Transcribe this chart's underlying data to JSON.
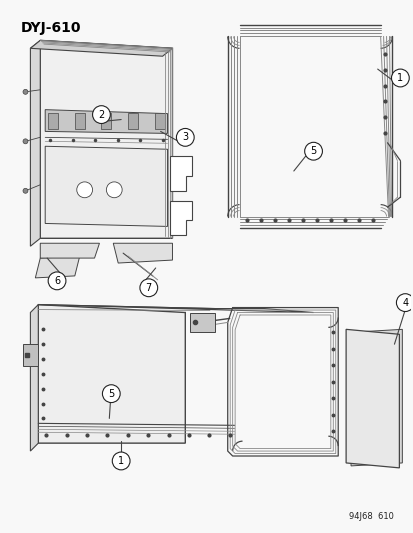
{
  "title": "DYJ-610",
  "footer": "94J68  610",
  "bg": "#f5f5f5",
  "lc": "#444444",
  "lc2": "#888888",
  "dg": "#222222",
  "fig_w": 4.14,
  "fig_h": 5.33,
  "dpi": 100
}
